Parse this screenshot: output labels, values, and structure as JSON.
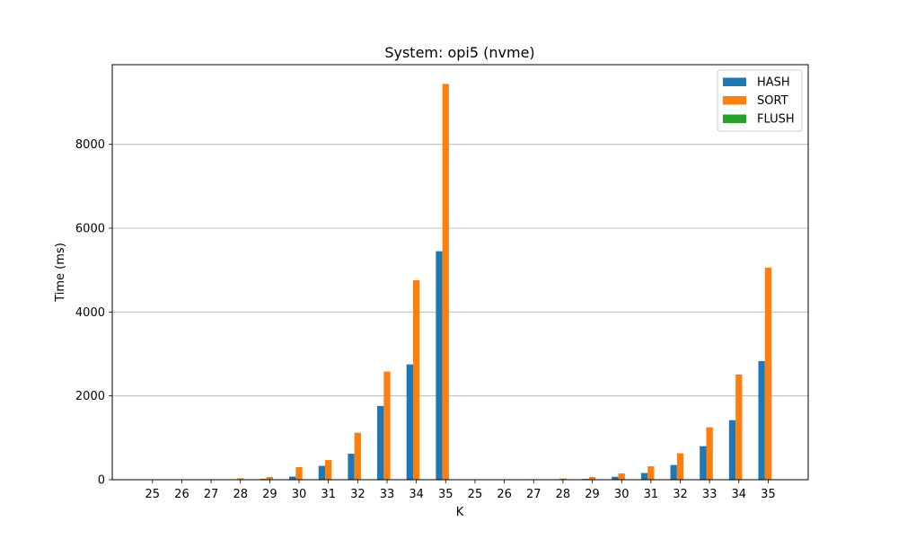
{
  "chart_data": {
    "type": "bar",
    "title": "System: opi5 (nvme)",
    "xlabel": "K",
    "ylabel": "Time (ms)",
    "ylim": [
      0,
      9900
    ],
    "yticks": [
      0,
      2000,
      4000,
      6000,
      8000
    ],
    "grid": "y",
    "legend_position": "top-right",
    "categories": [
      "25",
      "26",
      "27",
      "28",
      "29",
      "30",
      "31",
      "32",
      "33",
      "34",
      "35",
      "25",
      "26",
      "27",
      "28",
      "29",
      "30",
      "31",
      "32",
      "33",
      "34",
      "35"
    ],
    "series": [
      {
        "name": "HASH",
        "color": "#1f77b4",
        "values": [
          1,
          2,
          4,
          9,
          20,
          75,
          330,
          620,
          1760,
          2750,
          5450,
          1,
          2,
          4,
          9,
          20,
          70,
          160,
          350,
          800,
          1420,
          2830
        ]
      },
      {
        "name": "SORT",
        "color": "#ff7f0e",
        "values": [
          2,
          4,
          12,
          35,
          65,
          300,
          470,
          1120,
          2580,
          4760,
          9440,
          2,
          4,
          12,
          30,
          65,
          150,
          320,
          630,
          1250,
          2510,
          5060
        ]
      },
      {
        "name": "FLUSH",
        "color": "#2ca02c",
        "values": [
          0,
          0,
          0,
          0,
          0,
          0,
          0,
          0,
          0,
          0,
          0,
          0,
          0,
          0,
          0,
          0,
          0,
          0,
          0,
          0,
          0,
          0
        ]
      }
    ]
  }
}
